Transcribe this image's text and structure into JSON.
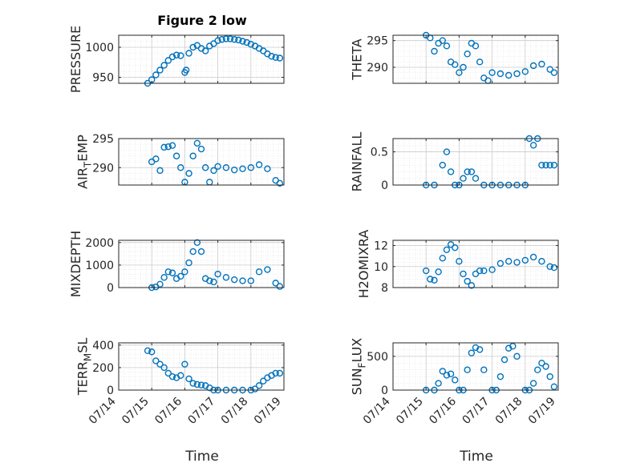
{
  "figure": {
    "title": "Figure 2 low",
    "xlabel": "Time"
  },
  "colors": {
    "marker": "#0072BD",
    "axis": "#262626",
    "grid": "#cccccc"
  },
  "chart_data": [
    {
      "type": "scatter",
      "ylabel": "PRESSURE",
      "ylabel_sub": "",
      "ylabel_tail": "",
      "title": "Figure 2 low",
      "xlabel": "",
      "ylim": [
        940,
        1020
      ],
      "yticks": [
        950,
        1000
      ],
      "xlim": [
        "07/14",
        "07/19"
      ],
      "xticks": [
        "07/14",
        "07/15",
        "07/16",
        "07/17",
        "07/18",
        "07/19"
      ],
      "grid": true,
      "x": [
        "07/14 21:00",
        "07/15 00:00",
        "07/15 03:00",
        "07/15 06:00",
        "07/15 09:00",
        "07/15 12:00",
        "07/15 15:00",
        "07/15 18:00",
        "07/15 21:00",
        "07/16 00:00",
        "07/16 01:00",
        "07/16 03:00",
        "07/16 06:00",
        "07/16 09:00",
        "07/16 12:00",
        "07/16 15:00",
        "07/16 18:00",
        "07/16 21:00",
        "07/17 00:00",
        "07/17 03:00",
        "07/17 06:00",
        "07/17 09:00",
        "07/17 12:00",
        "07/17 15:00",
        "07/17 18:00",
        "07/17 21:00",
        "07/18 00:00",
        "07/18 03:00",
        "07/18 06:00",
        "07/18 09:00",
        "07/18 12:00",
        "07/18 15:00",
        "07/18 18:00",
        "07/18 21:00"
      ],
      "y": [
        940,
        946,
        954,
        962,
        970,
        978,
        984,
        987,
        986,
        958,
        962,
        990,
        1000,
        1003,
        998,
        994,
        1002,
        1006,
        1011,
        1013,
        1014,
        1014,
        1013,
        1012,
        1010,
        1008,
        1005,
        1002,
        998,
        994,
        989,
        985,
        983,
        982
      ]
    },
    {
      "type": "scatter",
      "ylabel": "THETA",
      "ylabel_sub": "",
      "ylabel_tail": "",
      "xlabel": "",
      "ylim": [
        287,
        296
      ],
      "yticks": [
        290,
        295
      ],
      "xlim": [
        "07/14",
        "07/19"
      ],
      "xticks": [
        "07/14",
        "07/15",
        "07/16",
        "07/17",
        "07/18",
        "07/19"
      ],
      "grid": true,
      "x": [
        "07/15 00:00",
        "07/15 03:00",
        "07/15 06:00",
        "07/15 09:00",
        "07/15 12:00",
        "07/15 15:00",
        "07/15 18:00",
        "07/15 21:00",
        "07/16 00:00",
        "07/16 03:00",
        "07/16 06:00",
        "07/16 09:00",
        "07/16 12:00",
        "07/16 15:00",
        "07/16 18:00",
        "07/16 21:00",
        "07/17 00:00",
        "07/17 06:00",
        "07/17 12:00",
        "07/17 18:00",
        "07/18 00:00",
        "07/18 06:00",
        "07/18 12:00",
        "07/18 18:00",
        "07/18 21:00"
      ],
      "y": [
        296,
        295.5,
        293,
        294.5,
        295,
        294,
        291,
        290.5,
        289,
        290,
        292.5,
        294.5,
        294,
        291,
        288,
        287.5,
        289,
        288.8,
        288.5,
        288.8,
        289.2,
        290.3,
        290.6,
        289.6,
        289
      ]
    },
    {
      "type": "scatter",
      "ylabel": "AIR",
      "ylabel_sub": "T",
      "ylabel_tail": "EMP",
      "xlabel": "",
      "ylim": [
        287,
        295
      ],
      "yticks": [
        290,
        295
      ],
      "xlim": [
        "07/14",
        "07/19"
      ],
      "xticks": [
        "07/14",
        "07/15",
        "07/16",
        "07/17",
        "07/18",
        "07/19"
      ],
      "grid": true,
      "x": [
        "07/15 00:00",
        "07/15 03:00",
        "07/15 06:00",
        "07/15 09:00",
        "07/15 12:00",
        "07/15 15:00",
        "07/15 18:00",
        "07/15 21:00",
        "07/16 00:00",
        "07/16 03:00",
        "07/16 06:00",
        "07/16 09:00",
        "07/16 12:00",
        "07/16 15:00",
        "07/16 18:00",
        "07/16 21:00",
        "07/17 00:00",
        "07/17 06:00",
        "07/17 12:00",
        "07/17 18:00",
        "07/18 00:00",
        "07/18 06:00",
        "07/18 12:00",
        "07/18 18:00",
        "07/18 21:00"
      ],
      "y": [
        291,
        291.5,
        289.5,
        293.5,
        293.6,
        293.8,
        292,
        290,
        287.5,
        289,
        292,
        294.2,
        293.2,
        290,
        287.5,
        289.5,
        290.2,
        290,
        289.6,
        289.8,
        290,
        290.5,
        289.8,
        287.8,
        287.3
      ]
    },
    {
      "type": "scatter",
      "ylabel": "RAINFALL",
      "ylabel_sub": "",
      "ylabel_tail": "",
      "xlabel": "",
      "ylim": [
        0,
        0.7
      ],
      "yticks": [
        0,
        0.5
      ],
      "xlim": [
        "07/14",
        "07/19"
      ],
      "xticks": [
        "07/14",
        "07/15",
        "07/16",
        "07/17",
        "07/18",
        "07/19"
      ],
      "grid": true,
      "x": [
        "07/15 00:00",
        "07/15 06:00",
        "07/15 12:00",
        "07/15 15:00",
        "07/15 18:00",
        "07/15 21:00",
        "07/16 00:00",
        "07/16 03:00",
        "07/16 06:00",
        "07/16 09:00",
        "07/16 12:00",
        "07/16 18:00",
        "07/17 00:00",
        "07/17 06:00",
        "07/17 12:00",
        "07/17 18:00",
        "07/18 00:00",
        "07/18 03:00",
        "07/18 06:00",
        "07/18 09:00",
        "07/18 12:00",
        "07/18 15:00",
        "07/18 18:00",
        "07/18 21:00"
      ],
      "y": [
        0,
        0,
        0.3,
        0.5,
        0.2,
        0,
        0,
        0.1,
        0.2,
        0.2,
        0.1,
        0,
        0,
        0,
        0,
        0,
        0,
        0.7,
        0.6,
        0.7,
        0.3,
        0.3,
        0.3,
        0.3
      ]
    },
    {
      "type": "scatter",
      "ylabel": "MIXDEPTH",
      "ylabel_sub": "",
      "ylabel_tail": "",
      "xlabel": "",
      "ylim": [
        0,
        2100
      ],
      "yticks": [
        0,
        1000,
        2000
      ],
      "xlim": [
        "07/14",
        "07/19"
      ],
      "xticks": [
        "07/14",
        "07/15",
        "07/16",
        "07/17",
        "07/18",
        "07/19"
      ],
      "grid": true,
      "x": [
        "07/15 00:00",
        "07/15 03:00",
        "07/15 06:00",
        "07/15 09:00",
        "07/15 12:00",
        "07/15 15:00",
        "07/15 18:00",
        "07/15 21:00",
        "07/16 00:00",
        "07/16 03:00",
        "07/16 06:00",
        "07/16 09:00",
        "07/16 12:00",
        "07/16 15:00",
        "07/16 18:00",
        "07/16 21:00",
        "07/17 00:00",
        "07/17 06:00",
        "07/17 12:00",
        "07/17 18:00",
        "07/18 00:00",
        "07/18 06:00",
        "07/18 12:00",
        "07/18 18:00",
        "07/18 21:00"
      ],
      "y": [
        0,
        30,
        150,
        450,
        700,
        650,
        400,
        500,
        700,
        1100,
        1600,
        2000,
        1600,
        400,
        300,
        250,
        600,
        450,
        350,
        300,
        300,
        700,
        800,
        200,
        50
      ]
    },
    {
      "type": "scatter",
      "ylabel": "H2OMIXRA",
      "ylabel_sub": "",
      "ylabel_tail": "",
      "xlabel": "",
      "ylim": [
        8,
        12.5
      ],
      "yticks": [
        8,
        10,
        12
      ],
      "xlim": [
        "07/14",
        "07/19"
      ],
      "xticks": [
        "07/14",
        "07/15",
        "07/16",
        "07/17",
        "07/18",
        "07/19"
      ],
      "grid": true,
      "x": [
        "07/15 00:00",
        "07/15 03:00",
        "07/15 06:00",
        "07/15 09:00",
        "07/15 12:00",
        "07/15 15:00",
        "07/15 18:00",
        "07/15 21:00",
        "07/16 00:00",
        "07/16 03:00",
        "07/16 06:00",
        "07/16 09:00",
        "07/16 12:00",
        "07/16 15:00",
        "07/16 18:00",
        "07/17 00:00",
        "07/17 06:00",
        "07/17 12:00",
        "07/17 18:00",
        "07/18 00:00",
        "07/18 06:00",
        "07/18 12:00",
        "07/18 18:00",
        "07/18 21:00"
      ],
      "y": [
        9.6,
        8.8,
        8.7,
        9.5,
        10.8,
        11.6,
        12.1,
        11.8,
        10.5,
        9.3,
        8.6,
        8.2,
        9.3,
        9.6,
        9.6,
        9.7,
        10.3,
        10.5,
        10.4,
        10.6,
        10.9,
        10.5,
        10,
        9.9
      ]
    },
    {
      "type": "scatter",
      "ylabel": "TERR",
      "ylabel_sub": "M",
      "ylabel_tail": "SL",
      "xlabel": "Time",
      "ylim": [
        0,
        420
      ],
      "yticks": [
        0,
        200,
        400
      ],
      "xlim": [
        "07/14",
        "07/19"
      ],
      "xticks": [
        "07/14",
        "07/15",
        "07/16",
        "07/17",
        "07/18",
        "07/19"
      ],
      "grid": true,
      "x": [
        "07/14 21:00",
        "07/15 00:00",
        "07/15 03:00",
        "07/15 06:00",
        "07/15 09:00",
        "07/15 12:00",
        "07/15 15:00",
        "07/15 18:00",
        "07/15 21:00",
        "07/16 00:00",
        "07/16 03:00",
        "07/16 06:00",
        "07/16 09:00",
        "07/16 12:00",
        "07/16 15:00",
        "07/16 18:00",
        "07/16 21:00",
        "07/17 00:00",
        "07/17 06:00",
        "07/17 12:00",
        "07/17 18:00",
        "07/18 00:00",
        "07/18 03:00",
        "07/18 06:00",
        "07/18 09:00",
        "07/18 12:00",
        "07/18 15:00",
        "07/18 18:00",
        "07/18 21:00"
      ],
      "y": [
        350,
        340,
        260,
        230,
        200,
        150,
        120,
        110,
        130,
        230,
        100,
        60,
        50,
        45,
        40,
        20,
        0,
        0,
        0,
        0,
        0,
        0,
        10,
        40,
        80,
        110,
        130,
        150,
        150
      ]
    },
    {
      "type": "scatter",
      "ylabel": "SUN",
      "ylabel_sub": "F",
      "ylabel_tail": "LUX",
      "xlabel": "Time",
      "ylim": [
        0,
        700
      ],
      "yticks": [
        0,
        500
      ],
      "xlim": [
        "07/14",
        "07/19"
      ],
      "xticks": [
        "07/14",
        "07/15",
        "07/16",
        "07/17",
        "07/18",
        "07/19"
      ],
      "grid": true,
      "x": [
        "07/15 00:00",
        "07/15 06:00",
        "07/15 09:00",
        "07/15 12:00",
        "07/15 15:00",
        "07/15 18:00",
        "07/15 21:00",
        "07/16 00:00",
        "07/16 03:00",
        "07/16 06:00",
        "07/16 09:00",
        "07/16 12:00",
        "07/16 15:00",
        "07/16 18:00",
        "07/17 00:00",
        "07/17 03:00",
        "07/17 06:00",
        "07/17 09:00",
        "07/17 12:00",
        "07/17 15:00",
        "07/17 18:00",
        "07/18 00:00",
        "07/18 03:00",
        "07/18 06:00",
        "07/18 09:00",
        "07/18 12:00",
        "07/18 15:00",
        "07/18 18:00",
        "07/18 21:00"
      ],
      "y": [
        0,
        0,
        100,
        280,
        220,
        240,
        150,
        0,
        0,
        300,
        550,
        630,
        600,
        300,
        0,
        0,
        200,
        450,
        620,
        650,
        500,
        0,
        0,
        100,
        300,
        400,
        350,
        200,
        50
      ]
    }
  ]
}
